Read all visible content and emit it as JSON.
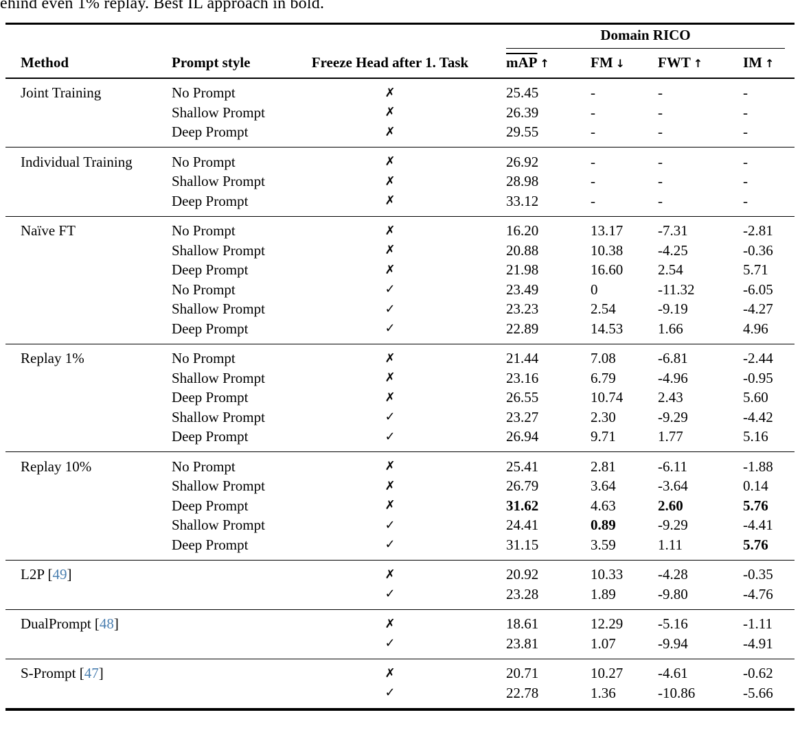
{
  "caption": "ehind even 1% replay. Best IL approach in bold.",
  "table": {
    "group_header": "Domain RICO",
    "columns": {
      "method": "Method",
      "prompt_style": "Prompt style",
      "freeze_head": "Freeze Head after 1. Task"
    },
    "metric_columns": [
      {
        "label": "mAP",
        "overline": true,
        "arrow": "↑"
      },
      {
        "label": "FM",
        "overline": false,
        "arrow": "↓"
      },
      {
        "label": "FWT",
        "overline": false,
        "arrow": "↑"
      },
      {
        "label": "IM",
        "overline": false,
        "arrow": "↑"
      }
    ],
    "marks": {
      "cross": "✗",
      "check": "✓"
    },
    "citation_color": "#4a7fb0",
    "groups": [
      {
        "method": "Joint Training",
        "cite": null,
        "rows": [
          {
            "prompt": "No Prompt",
            "freeze": "cross",
            "values": [
              "25.45",
              "-",
              "-",
              "-"
            ],
            "bold": [
              false,
              false,
              false,
              false
            ]
          },
          {
            "prompt": "Shallow Prompt",
            "freeze": "cross",
            "values": [
              "26.39",
              "-",
              "-",
              "-"
            ],
            "bold": [
              false,
              false,
              false,
              false
            ]
          },
          {
            "prompt": "Deep Prompt",
            "freeze": "cross",
            "values": [
              "29.55",
              "-",
              "-",
              "-"
            ],
            "bold": [
              false,
              false,
              false,
              false
            ]
          }
        ]
      },
      {
        "method": "Individual Training",
        "cite": null,
        "rows": [
          {
            "prompt": "No Prompt",
            "freeze": "cross",
            "values": [
              "26.92",
              "-",
              "-",
              "-"
            ],
            "bold": [
              false,
              false,
              false,
              false
            ]
          },
          {
            "prompt": "Shallow Prompt",
            "freeze": "cross",
            "values": [
              "28.98",
              "-",
              "-",
              "-"
            ],
            "bold": [
              false,
              false,
              false,
              false
            ]
          },
          {
            "prompt": "Deep Prompt",
            "freeze": "cross",
            "values": [
              "33.12",
              "-",
              "-",
              "-"
            ],
            "bold": [
              false,
              false,
              false,
              false
            ]
          }
        ]
      },
      {
        "method": "Naïve FT",
        "cite": null,
        "rows": [
          {
            "prompt": "No Prompt",
            "freeze": "cross",
            "values": [
              "16.20",
              "13.17",
              "-7.31",
              "-2.81"
            ],
            "bold": [
              false,
              false,
              false,
              false
            ]
          },
          {
            "prompt": "Shallow Prompt",
            "freeze": "cross",
            "values": [
              "20.88",
              "10.38",
              "-4.25",
              "-0.36"
            ],
            "bold": [
              false,
              false,
              false,
              false
            ]
          },
          {
            "prompt": "Deep Prompt",
            "freeze": "cross",
            "values": [
              "21.98",
              "16.60",
              "2.54",
              "5.71"
            ],
            "bold": [
              false,
              false,
              false,
              false
            ]
          },
          {
            "prompt": "No Prompt",
            "freeze": "check",
            "values": [
              "23.49",
              "0",
              "-11.32",
              "-6.05"
            ],
            "bold": [
              false,
              false,
              false,
              false
            ]
          },
          {
            "prompt": "Shallow Prompt",
            "freeze": "check",
            "values": [
              "23.23",
              "2.54",
              "-9.19",
              "-4.27"
            ],
            "bold": [
              false,
              false,
              false,
              false
            ]
          },
          {
            "prompt": "Deep Prompt",
            "freeze": "check",
            "values": [
              "22.89",
              "14.53",
              "1.66",
              "4.96"
            ],
            "bold": [
              false,
              false,
              false,
              false
            ]
          }
        ]
      },
      {
        "method": "Replay 1%",
        "cite": null,
        "rows": [
          {
            "prompt": "No Prompt",
            "freeze": "cross",
            "values": [
              "21.44",
              "7.08",
              "-6.81",
              "-2.44"
            ],
            "bold": [
              false,
              false,
              false,
              false
            ]
          },
          {
            "prompt": "Shallow Prompt",
            "freeze": "cross",
            "values": [
              "23.16",
              "6.79",
              "-4.96",
              "-0.95"
            ],
            "bold": [
              false,
              false,
              false,
              false
            ]
          },
          {
            "prompt": "Deep Prompt",
            "freeze": "cross",
            "values": [
              "26.55",
              "10.74",
              "2.43",
              "5.60"
            ],
            "bold": [
              false,
              false,
              false,
              false
            ]
          },
          {
            "prompt": "Shallow Prompt",
            "freeze": "check",
            "values": [
              "23.27",
              "2.30",
              "-9.29",
              "-4.42"
            ],
            "bold": [
              false,
              false,
              false,
              false
            ]
          },
          {
            "prompt": "Deep Prompt",
            "freeze": "check",
            "values": [
              "26.94",
              "9.71",
              "1.77",
              "5.16"
            ],
            "bold": [
              false,
              false,
              false,
              false
            ]
          }
        ]
      },
      {
        "method": "Replay 10%",
        "cite": null,
        "rows": [
          {
            "prompt": "No Prompt",
            "freeze": "cross",
            "values": [
              "25.41",
              "2.81",
              "-6.11",
              "-1.88"
            ],
            "bold": [
              false,
              false,
              false,
              false
            ]
          },
          {
            "prompt": "Shallow Prompt",
            "freeze": "cross",
            "values": [
              "26.79",
              "3.64",
              "-3.64",
              "0.14"
            ],
            "bold": [
              false,
              false,
              false,
              false
            ]
          },
          {
            "prompt": "Deep Prompt",
            "freeze": "cross",
            "values": [
              "31.62",
              "4.63",
              "2.60",
              "5.76"
            ],
            "bold": [
              true,
              false,
              true,
              true
            ]
          },
          {
            "prompt": "Shallow Prompt",
            "freeze": "check",
            "values": [
              "24.41",
              "0.89",
              "-9.29",
              "-4.41"
            ],
            "bold": [
              false,
              true,
              false,
              false
            ]
          },
          {
            "prompt": "Deep Prompt",
            "freeze": "check",
            "values": [
              "31.15",
              "3.59",
              "1.11",
              "5.76"
            ],
            "bold": [
              false,
              false,
              false,
              true
            ]
          }
        ]
      },
      {
        "method": "L2P",
        "cite": "49",
        "rows": [
          {
            "prompt": "",
            "freeze": "cross",
            "values": [
              "20.92",
              "10.33",
              "-4.28",
              "-0.35"
            ],
            "bold": [
              false,
              false,
              false,
              false
            ]
          },
          {
            "prompt": "",
            "freeze": "check",
            "values": [
              "23.28",
              "1.89",
              "-9.80",
              "-4.76"
            ],
            "bold": [
              false,
              false,
              false,
              false
            ]
          }
        ]
      },
      {
        "method": "DualPrompt",
        "cite": "48",
        "rows": [
          {
            "prompt": "",
            "freeze": "cross",
            "values": [
              "18.61",
              "12.29",
              "-5.16",
              "-1.11"
            ],
            "bold": [
              false,
              false,
              false,
              false
            ]
          },
          {
            "prompt": "",
            "freeze": "check",
            "values": [
              "23.81",
              "1.07",
              "-9.94",
              "-4.91"
            ],
            "bold": [
              false,
              false,
              false,
              false
            ]
          }
        ]
      },
      {
        "method": "S-Prompt",
        "cite": "47",
        "rows": [
          {
            "prompt": "",
            "freeze": "cross",
            "values": [
              "20.71",
              "10.27",
              "-4.61",
              "-0.62"
            ],
            "bold": [
              false,
              false,
              false,
              false
            ]
          },
          {
            "prompt": "",
            "freeze": "check",
            "values": [
              "22.78",
              "1.36",
              "-10.86",
              "-5.66"
            ],
            "bold": [
              false,
              false,
              false,
              false
            ]
          }
        ]
      }
    ]
  }
}
